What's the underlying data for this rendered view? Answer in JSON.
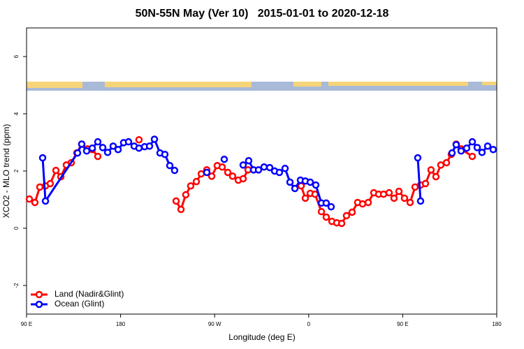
{
  "chart_data": {
    "type": "line",
    "title": "50N-55N May (Ver 10)   2015-01-01 to 2020-12-18",
    "x_label": "Longitude (deg E)",
    "y_label": "XCO2 - MLO trend (ppm)",
    "xlim": [
      90,
      540
    ],
    "xticks": [
      {
        "value": 90,
        "label": "90 E"
      },
      {
        "value": 180,
        "label": "180"
      },
      {
        "value": 270,
        "label": "90 W"
      },
      {
        "value": 360,
        "label": "0"
      },
      {
        "value": 450,
        "label": "90 E"
      },
      {
        "value": 540,
        "label": "180"
      }
    ],
    "ylim": [
      -3,
      7
    ],
    "yticks": [
      -2,
      0,
      2,
      4,
      6
    ],
    "legend": "bottom-left",
    "series": [
      {
        "name": "Land (Nadir&Glint)",
        "color": "#ff0000",
        "x": [
          92.7,
          98.0,
          102.7,
          108.1,
          112.7,
          118.1,
          122.8,
          128.1,
          132.8,
          138.1,
          142.8,
          148.2,
          152.9,
          158.2,
          null,
          197.6,
          null,
          233.1,
          237.8,
          242.4,
          247.1,
          252.5,
          257.2,
          262.5,
          267.2,
          272.5,
          277.2,
          282.6,
          287.2,
          292.6,
          297.3,
          302.0,
          null,
          352.8,
          356.8,
          361.5,
          366.1,
          372.2,
          376.8,
          382.2,
          386.9,
          391.6,
          396.2,
          401.6,
          406.9,
          411.6,
          417.0,
          422.3,
          427.0,
          431.7,
          437.0,
          441.7,
          446.4,
          451.7,
          457.1,
          461.8,
          467.1,
          471.8,
          477.1,
          481.8,
          486.5,
          491.9,
          496.5,
          501.2,
          505.9,
          516.6
        ],
        "values": [
          1.02,
          0.9,
          1.44,
          1.48,
          1.56,
          2.02,
          1.8,
          2.21,
          2.29,
          2.63,
          2.94,
          2.77,
          2.75,
          2.51,
          null,
          3.09,
          null,
          0.95,
          0.66,
          1.17,
          1.48,
          1.63,
          1.9,
          2.04,
          1.82,
          2.19,
          2.14,
          1.95,
          1.82,
          1.68,
          1.73,
          2.04,
          null,
          1.48,
          1.05,
          1.22,
          1.19,
          0.58,
          0.39,
          0.24,
          0.19,
          0.17,
          0.44,
          0.56,
          0.9,
          0.85,
          0.9,
          1.24,
          1.19,
          1.19,
          1.24,
          1.05,
          1.29,
          1.05,
          0.9,
          1.44,
          1.51,
          1.56,
          2.04,
          1.8,
          2.21,
          2.29,
          2.58,
          2.94,
          2.77,
          2.51
        ]
      },
      {
        "name": "Ocean (Glint)",
        "color": "#0000ff",
        "x": [
          105.4,
          108.1,
          138.8,
          142.8,
          147.5,
          152.9,
          158.2,
          162.9,
          167.6,
          172.9,
          177.6,
          182.9,
          187.6,
          193.0,
          197.6,
          203.0,
          207.7,
          212.4,
          217.7,
          222.4,
          227.1,
          231.7,
          null,
          262.5,
          null,
          279.2,
          null,
          297.3,
          302.6,
          307.3,
          312.0,
          317.3,
          322.7,
          327.4,
          332.0,
          337.4,
          342.1,
          346.8,
          352.1,
          356.8,
          361.5,
          366.8,
          372.2,
          376.8,
          381.5,
          null,
          464.4,
          467.1,
          null,
          497.2,
          501.2,
          505.9,
          511.2,
          516.6,
          521.3,
          525.9,
          531.3,
          536.6
        ],
        "values": [
          2.46,
          0.95,
          2.63,
          2.94,
          2.7,
          2.8,
          3.02,
          2.82,
          2.65,
          2.87,
          2.75,
          2.99,
          3.02,
          2.87,
          2.8,
          2.85,
          2.87,
          3.11,
          2.63,
          2.58,
          2.19,
          2.02,
          null,
          1.95,
          null,
          2.41,
          null,
          2.21,
          2.36,
          2.04,
          2.04,
          2.14,
          2.12,
          2.0,
          1.95,
          2.09,
          1.61,
          1.39,
          1.68,
          1.65,
          1.61,
          1.51,
          0.88,
          0.88,
          0.75,
          null,
          2.46,
          0.95,
          null,
          2.63,
          2.92,
          2.7,
          2.8,
          3.02,
          2.82,
          2.65,
          2.87,
          2.75
        ]
      }
    ]
  }
}
